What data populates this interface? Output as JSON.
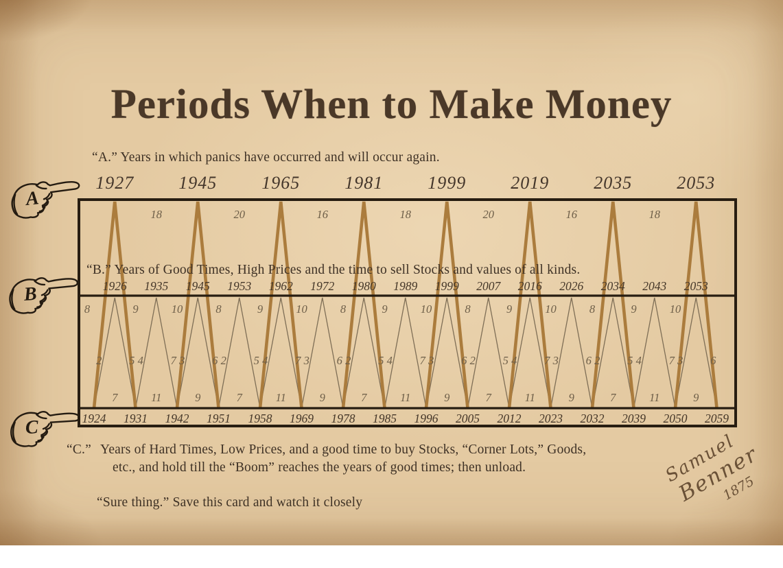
{
  "page": {
    "title": "Periods When to Make Money",
    "caption_a": "“A.” Years in which panics have occurred and will occur again.",
    "caption_b": "“B.” Years of Good Times, High Prices and the time to sell Stocks and values of all kinds.",
    "caption_c_label": "“C.”",
    "caption_c_line1": "Years of Hard Times, Low Prices, and a good time to buy Stocks, “Corner Lots,” Goods,",
    "caption_c_line2": "etc., and hold till  the “Boom” reaches the years of good times; then unload.",
    "footer_note": "“Sure thing.” Save this card and watch it closely",
    "signature": {
      "first_name": "Samuel",
      "last_name": "Benner",
      "year": "1875"
    },
    "pointer_labels": [
      "A",
      "B",
      "C"
    ]
  },
  "colors": {
    "paper": "#e4caa2",
    "ink": "#3e3125",
    "title_ink": "#4a3828",
    "border": "#271d11",
    "thick_cycle_line": "#ab7c3d",
    "thin_cycle_line": "#7e6e56",
    "faded_number": "#6d5e48",
    "year_number": "#453729"
  },
  "chart_data": {
    "type": "line",
    "title": "Benner cycle chart — Periods When to Make Money",
    "a_panic_years": [
      1927,
      1945,
      1965,
      1981,
      1999,
      2019,
      2035,
      2053
    ],
    "a_intervals": [
      18,
      20,
      16,
      18,
      20,
      16,
      18
    ],
    "b_good_times_years": [
      1926,
      1935,
      1945,
      1953,
      1962,
      1972,
      1980,
      1989,
      1999,
      2007,
      2016,
      2026,
      2034,
      2043,
      2053
    ],
    "b_intervals": [
      8,
      9,
      10,
      8,
      9,
      10,
      8,
      9,
      10,
      8,
      9,
      10,
      8,
      9,
      10
    ],
    "mid_interval_pairs": [
      [
        2,
        5
      ],
      [
        4,
        7
      ],
      [
        3,
        6
      ],
      [
        2,
        5
      ],
      [
        4,
        7
      ],
      [
        3,
        6
      ],
      [
        2,
        5
      ],
      [
        4,
        7
      ],
      [
        3,
        6
      ],
      [
        2,
        5
      ],
      [
        4,
        7
      ],
      [
        3,
        6
      ],
      [
        2,
        5
      ],
      [
        4,
        7
      ],
      [
        3,
        6
      ]
    ],
    "c_intervals": [
      7,
      11,
      9,
      7,
      11,
      9,
      7,
      11,
      9,
      7,
      11,
      9,
      7,
      11,
      9
    ],
    "c_hard_times_years": [
      1924,
      1931,
      1942,
      1951,
      1958,
      1969,
      1978,
      1985,
      1996,
      2005,
      2012,
      2023,
      2032,
      2039,
      2050,
      2059
    ],
    "legend_position": "none",
    "grid": false
  }
}
